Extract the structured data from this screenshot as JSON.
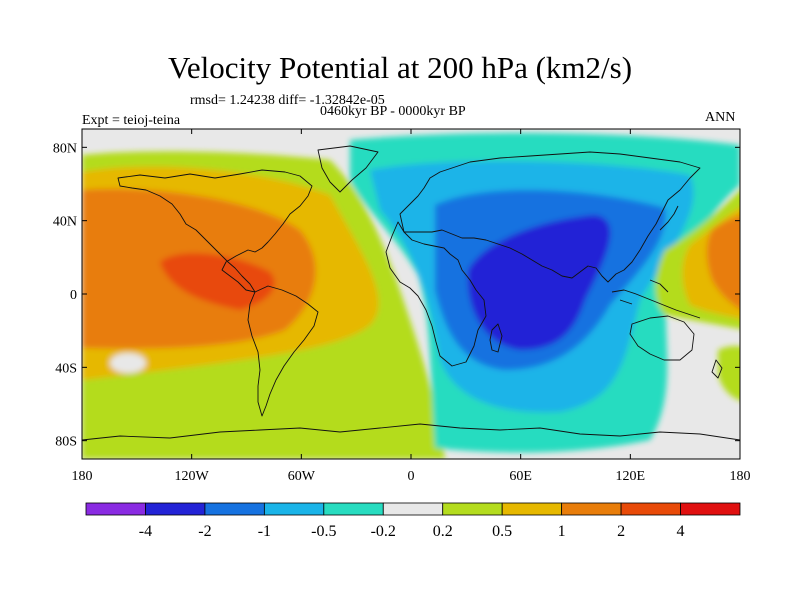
{
  "chart_data": {
    "type": "heatmap",
    "title": "Velocity Potential at 200 hPa (km2/s)",
    "stats": "rmsd= 1.24238 diff= -1.32842e-05",
    "left_label": "Expt = teioj-teina",
    "center_label": "0460kyr BP - 0000kyr BP",
    "right_label": "ANN",
    "x_ticks": [
      "180",
      "120W",
      "60W",
      "0",
      "60E",
      "120E",
      "180"
    ],
    "x_tick_values": [
      -180,
      -120,
      -60,
      0,
      60,
      120,
      180
    ],
    "y_ticks": [
      "80N",
      "40N",
      "0",
      "40S",
      "80S"
    ],
    "y_tick_values": [
      80,
      40,
      0,
      -40,
      -80
    ],
    "xlim": [
      -180,
      180
    ],
    "ylim": [
      -90,
      90
    ],
    "colorbar": {
      "colors": [
        "#8a2be2",
        "#2323d6",
        "#1672e0",
        "#1ab4e8",
        "#28dcc0",
        "#e8e8e8",
        "#b4dc1e",
        "#e6b800",
        "#e87d0a",
        "#e84a08",
        "#e01010"
      ],
      "labels": [
        "-4",
        "-2",
        "-1",
        "-0.5",
        "-0.2",
        "0.2",
        "0.5",
        "1",
        "2",
        "4"
      ]
    }
  }
}
